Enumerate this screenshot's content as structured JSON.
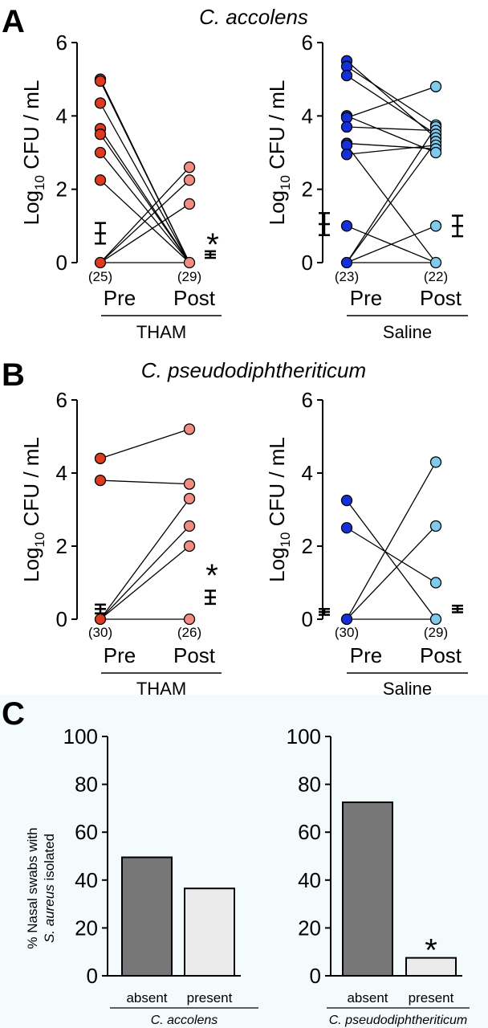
{
  "panel_labels": [
    "A",
    "B",
    "C"
  ],
  "chart_data": [
    {
      "type": "scatter",
      "panel": "A",
      "title": "C. accolens",
      "group_label": "THAM",
      "ylabel_pre": "Log",
      "ylabel_sub": "10",
      "ylabel_post": " CFU / mL",
      "ylim": [
        0,
        6
      ],
      "yticks": [
        "0",
        "2",
        "4",
        "6"
      ],
      "categories": [
        "Pre",
        "Post"
      ],
      "counts": [
        "(25)",
        "(29)"
      ],
      "colors": {
        "pre": "#e03a1e",
        "post": "#f08c80"
      },
      "lines": [
        [
          5.0,
          0
        ],
        [
          4.95,
          0
        ],
        [
          4.35,
          0
        ],
        [
          3.65,
          0
        ],
        [
          3.5,
          0
        ],
        [
          3.0,
          0
        ],
        [
          2.25,
          0
        ],
        [
          0,
          2.6
        ],
        [
          0,
          2.25
        ],
        [
          0,
          1.6
        ],
        [
          0,
          0
        ]
      ],
      "pre_points": [
        5.0,
        4.95,
        4.35,
        3.65,
        3.5,
        3.0,
        2.25,
        0
      ],
      "post_points": [
        2.6,
        2.25,
        1.6,
        0
      ],
      "mean_pre": {
        "mean": 0.8,
        "sem": 0.28
      },
      "mean_post": {
        "mean": 0.22,
        "sem": 0.09
      },
      "significance": "*"
    },
    {
      "type": "scatter",
      "panel": "A",
      "title": "",
      "group_label": "Saline",
      "ylabel_pre": "Log",
      "ylabel_sub": "10",
      "ylabel_post": " CFU / mL",
      "ylim": [
        0,
        6
      ],
      "yticks": [
        "0",
        "2",
        "4",
        "6"
      ],
      "categories": [
        "Pre",
        "Post"
      ],
      "counts": [
        "(23)",
        "(22)"
      ],
      "colors": {
        "pre": "#1530d8",
        "post": "#7fcbee"
      },
      "lines": [
        [
          5.5,
          3.4
        ],
        [
          5.35,
          3.75
        ],
        [
          5.1,
          3.5
        ],
        [
          4.0,
          3.0
        ],
        [
          3.95,
          4.8
        ],
        [
          3.7,
          3.6
        ],
        [
          3.25,
          3.1
        ],
        [
          3.2,
          0
        ],
        [
          2.95,
          3.2
        ],
        [
          1.0,
          0
        ],
        [
          0,
          3.7
        ],
        [
          0,
          3.3
        ],
        [
          0,
          1.0
        ],
        [
          0,
          0
        ]
      ],
      "pre_points": [
        5.5,
        5.35,
        5.1,
        4.0,
        3.95,
        3.7,
        3.25,
        3.2,
        2.95,
        1.0,
        0
      ],
      "post_points": [
        4.8,
        3.75,
        3.7,
        3.6,
        3.5,
        3.4,
        3.3,
        3.2,
        3.1,
        3.0,
        1.0,
        0
      ],
      "mean_pre": {
        "mean": 1.05,
        "sem": 0.3
      },
      "mean_post": {
        "mean": 1.0,
        "sem": 0.28
      },
      "significance": ""
    },
    {
      "type": "scatter",
      "panel": "B",
      "title": "C. pseudodiphtheriticum",
      "group_label": "THAM",
      "ylabel_pre": "Log",
      "ylabel_sub": "10",
      "ylabel_post": " CFU / mL",
      "ylim": [
        0,
        6
      ],
      "yticks": [
        "0",
        "2",
        "4",
        "6"
      ],
      "categories": [
        "Pre",
        "Post"
      ],
      "counts": [
        "(30)",
        "(26)"
      ],
      "colors": {
        "pre": "#e03a1e",
        "post": "#f08c80"
      },
      "lines": [
        [
          4.4,
          5.2
        ],
        [
          3.8,
          3.7
        ],
        [
          0,
          3.3
        ],
        [
          0,
          2.55
        ],
        [
          0,
          2.0
        ],
        [
          0,
          0
        ]
      ],
      "pre_points": [
        4.4,
        3.8,
        0
      ],
      "post_points": [
        5.2,
        3.7,
        3.3,
        2.55,
        2.0,
        0
      ],
      "mean_pre": {
        "mean": 0.28,
        "sem": 0.12
      },
      "mean_post": {
        "mean": 0.6,
        "sem": 0.18
      },
      "significance": "*"
    },
    {
      "type": "scatter",
      "panel": "B",
      "title": "",
      "group_label": "Saline",
      "ylabel_pre": "Log",
      "ylabel_sub": "10",
      "ylabel_post": " CFU / mL",
      "ylim": [
        0,
        6
      ],
      "yticks": [
        "0",
        "2",
        "4",
        "6"
      ],
      "categories": [
        "Pre",
        "Post"
      ],
      "counts": [
        "(30)",
        "(29)"
      ],
      "colors": {
        "pre": "#1530d8",
        "post": "#7fcbee"
      },
      "lines": [
        [
          3.25,
          0
        ],
        [
          2.5,
          1.0
        ],
        [
          0,
          4.3
        ],
        [
          0,
          2.55
        ],
        [
          0,
          0
        ]
      ],
      "pre_points": [
        3.25,
        2.5,
        0
      ],
      "post_points": [
        4.3,
        2.55,
        1.0,
        0
      ],
      "mean_pre": {
        "mean": 0.2,
        "sem": 0.08
      },
      "mean_post": {
        "mean": 0.28,
        "sem": 0.09
      },
      "significance": ""
    },
    {
      "type": "bar",
      "panel": "C",
      "ylabel_line1": "% Nasal swabs with",
      "ylabel_line2_italic": "S. aureus",
      "ylabel_line2_rest": " isolated",
      "categories": [
        "absent",
        "present"
      ],
      "values": [
        49.5,
        36.5
      ],
      "ylim": [
        0,
        100
      ],
      "yticks": [
        "0",
        "20",
        "40",
        "60",
        "80",
        "100"
      ],
      "group_label": "C. accolens",
      "colors": [
        "#777777",
        "#ebebeb"
      ],
      "significance": ""
    },
    {
      "type": "bar",
      "panel": "C",
      "categories": [
        "absent",
        "present"
      ],
      "values": [
        72.5,
        7.5
      ],
      "ylim": [
        0,
        100
      ],
      "yticks": [
        "0",
        "20",
        "40",
        "60",
        "80",
        "100"
      ],
      "group_label": "C. pseudodiphtheriticum",
      "colors": [
        "#777777",
        "#ebebeb"
      ],
      "significance": "*"
    }
  ]
}
